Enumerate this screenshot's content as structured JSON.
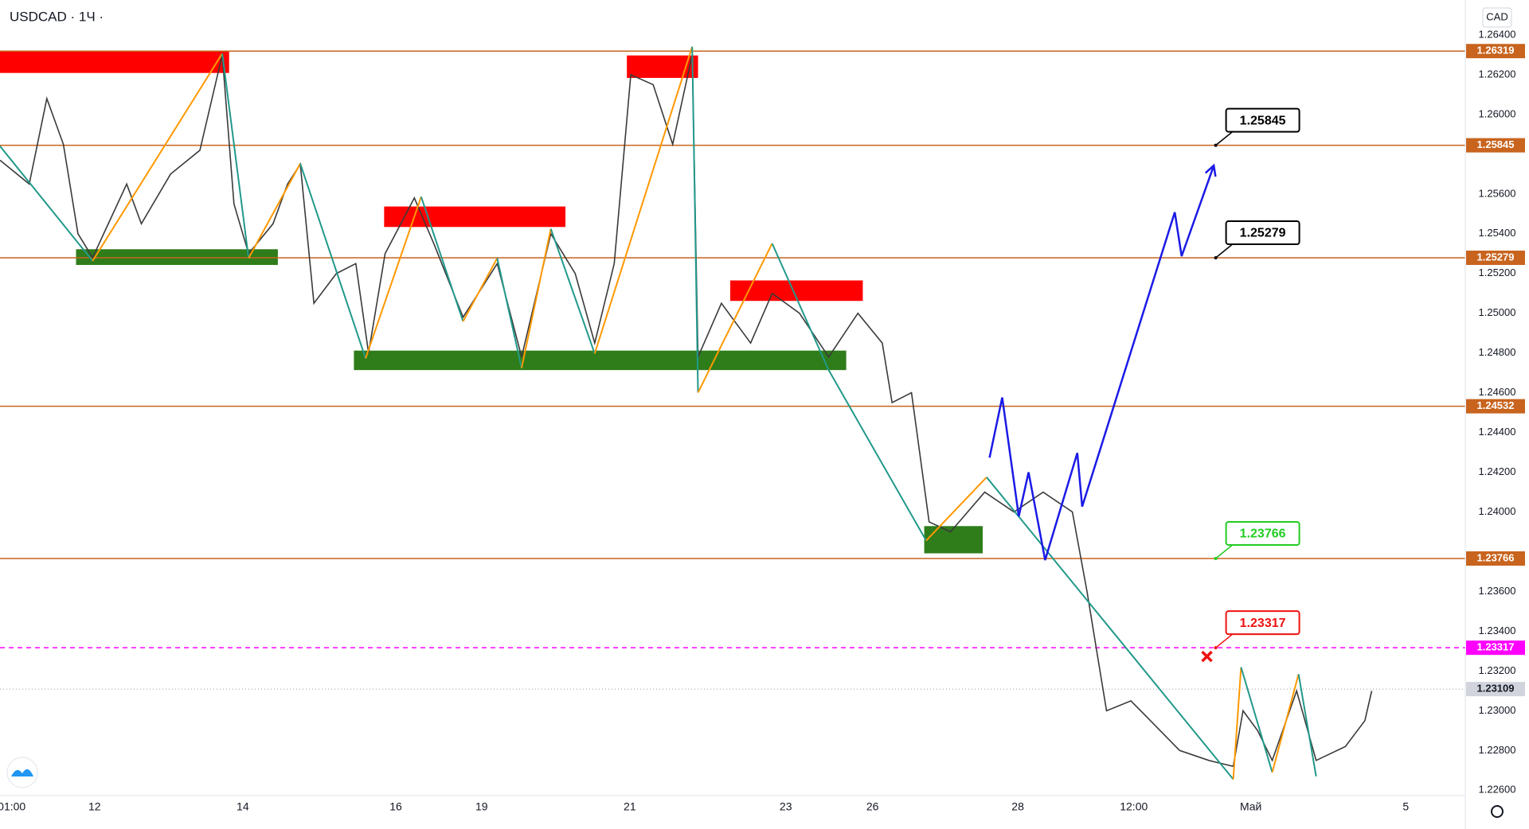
{
  "chart_data": {
    "type": "line",
    "title": "USDCAD · 1Ч ·",
    "currency": "CAD",
    "xlim": [
      0,
      300.6
    ],
    "ylim": [
      1.22405,
      1.26576
    ],
    "xticks": [
      {
        "value": 2.4,
        "label": "01:00"
      },
      {
        "value": 19.4,
        "label": "12"
      },
      {
        "value": 49.8,
        "label": "14"
      },
      {
        "value": 81.2,
        "label": "16"
      },
      {
        "value": 98.8,
        "label": "19"
      },
      {
        "value": 129.2,
        "label": "21"
      },
      {
        "value": 161.2,
        "label": "23"
      },
      {
        "value": 179,
        "label": "26"
      },
      {
        "value": 208.8,
        "label": "28"
      },
      {
        "value": 232.6,
        "label": "12:00"
      },
      {
        "value": 256.6,
        "label": "Май"
      },
      {
        "value": 288.4,
        "label": "5"
      }
    ],
    "yticks": [
      {
        "value": 1.264,
        "label": "1.26400"
      },
      {
        "value": 1.262,
        "label": "1.26200"
      },
      {
        "value": 1.26,
        "label": "1.26000"
      },
      {
        "value": 1.256,
        "label": "1.25600"
      },
      {
        "value": 1.254,
        "label": "1.25400"
      },
      {
        "value": 1.252,
        "label": "1.25200"
      },
      {
        "value": 1.25,
        "label": "1.25000"
      },
      {
        "value": 1.248,
        "label": "1.24800"
      },
      {
        "value": 1.246,
        "label": "1.24600"
      },
      {
        "value": 1.244,
        "label": "1.24400"
      },
      {
        "value": 1.242,
        "label": "1.24200"
      },
      {
        "value": 1.24,
        "label": "1.24000"
      },
      {
        "value": 1.236,
        "label": "1.23600"
      },
      {
        "value": 1.234,
        "label": "1.23400"
      },
      {
        "value": 1.232,
        "label": "1.23200"
      },
      {
        "value": 1.23,
        "label": "1.23000"
      },
      {
        "value": 1.228,
        "label": "1.22800"
      },
      {
        "value": 1.226,
        "label": "1.22600"
      }
    ],
    "series": [
      {
        "name": "USDCAD",
        "color": "#3a3a3a",
        "x": [
          0,
          6,
          9.6,
          13,
          16,
          19,
          26,
          29,
          35,
          41,
          45.6,
          48,
          51,
          56,
          59,
          61.6,
          64.4,
          69,
          73,
          75.6,
          79,
          85,
          89,
          95,
          102,
          107,
          113,
          118,
          122,
          126,
          129.4,
          134,
          138,
          142,
          143.2,
          148,
          154,
          158.4,
          164,
          170,
          176,
          181,
          183,
          187,
          190.6,
          195,
          202,
          208,
          214,
          220,
          223,
          225,
          227,
          232,
          236,
          242,
          248,
          253,
          255,
          258,
          261,
          266,
          270,
          276,
          280,
          281.4
        ],
        "values": [
          1.2577,
          1.2565,
          1.2608,
          1.2585,
          1.254,
          1.2528,
          1.2565,
          1.2545,
          1.257,
          1.2582,
          1.263,
          1.2555,
          1.253,
          1.2545,
          1.2565,
          1.2575,
          1.2505,
          1.252,
          1.2525,
          1.248,
          1.253,
          1.2558,
          1.2535,
          1.2498,
          1.2525,
          1.2478,
          1.254,
          1.252,
          1.2485,
          1.2525,
          1.262,
          1.2615,
          1.2585,
          1.263,
          1.2478,
          1.2505,
          1.2485,
          1.251,
          1.25,
          1.2478,
          1.25,
          1.2485,
          1.2455,
          1.246,
          1.2395,
          1.239,
          1.241,
          1.24,
          1.241,
          1.24,
          1.236,
          1.233,
          1.23,
          1.2305,
          1.2295,
          1.228,
          1.2275,
          1.2272,
          1.23,
          1.229,
          1.2275,
          1.231,
          1.2275,
          1.2282,
          1.2295,
          1.231
        ]
      }
    ],
    "current_price": 1.23109,
    "levels": [
      1.26319,
      1.25845,
      1.25279,
      1.24532,
      1.23766
    ],
    "level_color": "#c8641e",
    "stop_level": 1.23317,
    "stop_color": "#ff00ff",
    "callouts": [
      {
        "level": 1.25845,
        "color": "#000000"
      },
      {
        "level": 1.25279,
        "color": "#000000"
      },
      {
        "level": 1.23766,
        "color": "#22cc22"
      },
      {
        "level": 1.23317,
        "color": "#ee1111"
      }
    ],
    "callout_x": 249.4,
    "zones": [
      {
        "color": "#ff0000",
        "x": [
          0,
          47
        ],
        "values": [
          1.26317,
          1.26209
        ]
      },
      {
        "color": "#ff0000",
        "x": [
          128.6,
          143.2
        ],
        "values": [
          1.26297,
          1.26184
        ]
      },
      {
        "color": "#ff0000",
        "x": [
          78.8,
          116
        ],
        "values": [
          1.25537,
          1.25434
        ]
      },
      {
        "color": "#ff0000",
        "x": [
          149.8,
          177
        ],
        "values": [
          1.25165,
          1.25062
        ]
      },
      {
        "color": "#2e7d1a",
        "x": [
          15.6,
          57
        ],
        "values": [
          1.25322,
          1.25243
        ]
      },
      {
        "color": "#2e7d1a",
        "x": [
          72.6,
          173.6
        ],
        "values": [
          1.24812,
          1.24714
        ]
      },
      {
        "color": "#2e7d1a",
        "x": [
          189.6,
          201.6
        ],
        "values": [
          1.23929,
          1.23792
        ]
      }
    ],
    "zigzag": {
      "up_color": "#ff9800",
      "down_color": "#22998a",
      "x": [
        0,
        19,
        45.6,
        51,
        61.6,
        75,
        86.4,
        95,
        102,
        107,
        113,
        122,
        142,
        143.2,
        158.4,
        170,
        190,
        202.4,
        253,
        254.6,
        261,
        266.4,
        270
      ],
      "values": [
        1.25841,
        1.25263,
        1.26307,
        1.25277,
        1.25753,
        1.24773,
        1.25586,
        1.24959,
        1.25277,
        1.24724,
        1.25425,
        1.24797,
        1.26341,
        1.24601,
        1.25351,
        1.24714,
        1.23856,
        1.24175,
        1.22655,
        1.23219,
        1.2269,
        1.23184,
        1.2267
      ]
    },
    "forecast": {
      "color": "#1a1ae6",
      "x": [
        203,
        205.6,
        209,
        211,
        214.4,
        221,
        222,
        241,
        242.4,
        249
      ],
      "values": [
        1.24273,
        1.24576,
        1.23978,
        1.242,
        1.23758,
        1.24297,
        1.24027,
        1.25508,
        1.25287,
        1.25743
      ]
    },
    "stop_marker": {
      "x": 247.6,
      "value": 1.23273,
      "color": "#ee1111"
    }
  }
}
